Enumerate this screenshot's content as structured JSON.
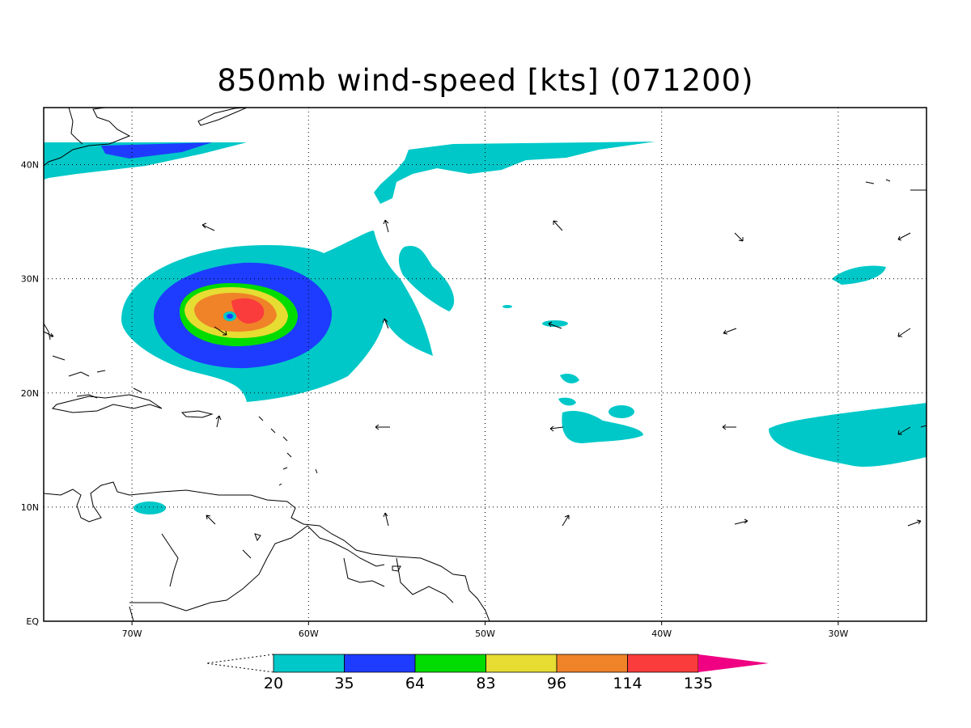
{
  "title": "850mb wind-speed [kts] (071200)",
  "map": {
    "lon_range": [
      -75,
      -25
    ],
    "lat_range": [
      0,
      45
    ],
    "lon_ticks": [
      {
        "lon": -70,
        "label": "70W"
      },
      {
        "lon": -60,
        "label": "60W"
      },
      {
        "lon": -50,
        "label": "50W"
      },
      {
        "lon": -40,
        "label": "40W"
      },
      {
        "lon": -30,
        "label": "30W"
      }
    ],
    "lat_ticks": [
      {
        "lat": 0,
        "label": "EQ"
      },
      {
        "lat": 10,
        "label": "10N"
      },
      {
        "lat": 20,
        "label": "20N"
      },
      {
        "lat": 30,
        "label": "30N"
      },
      {
        "lat": 40,
        "label": "40N"
      }
    ],
    "grid": "dotted"
  },
  "colorbar": {
    "levels": [
      "20",
      "35",
      "64",
      "83",
      "96",
      "114",
      "135"
    ],
    "colors": [
      "#00c8c8",
      "#1e3cff",
      "#00dc00",
      "#e6dc32",
      "#f08228",
      "#fa3c3c",
      "#f00082"
    ]
  },
  "storm": {
    "center_lon": -64.3,
    "center_lat": 26.9,
    "contours_colors": [
      "#00c8c8",
      "#1e3cff",
      "#00dc00",
      "#e6dc32",
      "#f08228",
      "#fa3c3c"
    ]
  },
  "wind_arrows_count": 26
}
